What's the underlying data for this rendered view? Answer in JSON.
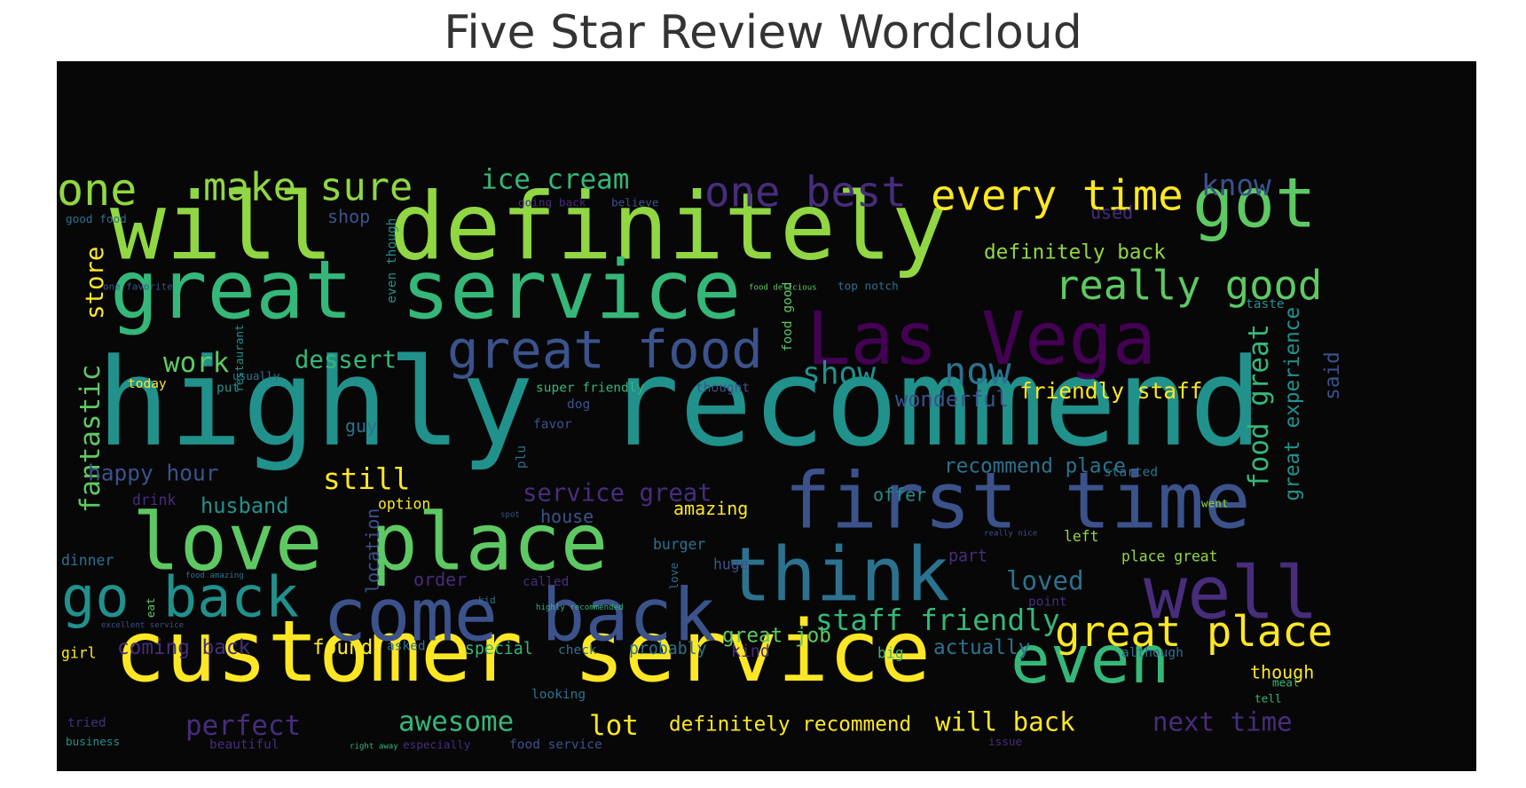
{
  "title": "Five Star Review Wordcloud",
  "colors": {
    "background": "#070708",
    "palette": [
      "#440154",
      "#3b528b",
      "#21918c",
      "#5ec962",
      "#fde725",
      "#2c728e",
      "#35b779",
      "#90d743",
      "#472d7b"
    ]
  },
  "words": [
    {
      "text": "highly recommend",
      "color": "#21918c"
    },
    {
      "text": "will definitely",
      "color": "#90d743"
    },
    {
      "text": "customer service",
      "color": "#fde725"
    },
    {
      "text": "great service",
      "color": "#35b779"
    },
    {
      "text": "first time",
      "color": "#3b528b"
    },
    {
      "text": "love place",
      "color": "#5ec962"
    },
    {
      "text": "Las Vega",
      "color": "#440154"
    },
    {
      "text": "come back",
      "color": "#3b528b"
    },
    {
      "text": "think",
      "color": "#2c728e"
    },
    {
      "text": "well",
      "color": "#472d7b"
    },
    {
      "text": "even",
      "color": "#35b779"
    },
    {
      "text": "go back",
      "color": "#21918c"
    },
    {
      "text": "got",
      "color": "#5ec962"
    },
    {
      "text": "great food",
      "color": "#3b528b"
    },
    {
      "text": "great place",
      "color": "#fde725"
    },
    {
      "text": "one best",
      "color": "#472d7b"
    },
    {
      "text": "every time",
      "color": "#fde725"
    },
    {
      "text": "one",
      "color": "#90d743"
    },
    {
      "text": "make sure",
      "color": "#90d743"
    },
    {
      "text": "really good",
      "color": "#5ec962"
    },
    {
      "text": "ice cream",
      "color": "#35b779"
    },
    {
      "text": "know",
      "color": "#3b528b"
    },
    {
      "text": "now",
      "color": "#2c728e"
    },
    {
      "text": "show",
      "color": "#21918c"
    },
    {
      "text": "work",
      "color": "#5ec962"
    },
    {
      "text": "dessert",
      "color": "#35b779"
    },
    {
      "text": "fantastic",
      "color": "#5ec962"
    },
    {
      "text": "store",
      "color": "#fde725"
    },
    {
      "text": "staff friendly",
      "color": "#35b779"
    },
    {
      "text": "service great",
      "color": "#472d7b"
    },
    {
      "text": "friendly staff",
      "color": "#fde725"
    },
    {
      "text": "definitely back",
      "color": "#90d743"
    },
    {
      "text": "still",
      "color": "#fde725"
    },
    {
      "text": "happy hour",
      "color": "#3b528b"
    },
    {
      "text": "husband",
      "color": "#21918c"
    },
    {
      "text": "perfect",
      "color": "#472d7b"
    },
    {
      "text": "awesome",
      "color": "#35b779"
    },
    {
      "text": "lot",
      "color": "#fde725"
    },
    {
      "text": "definitely recommend",
      "color": "#fde725"
    },
    {
      "text": "will back",
      "color": "#fde725"
    },
    {
      "text": "next time",
      "color": "#472d7b"
    },
    {
      "text": "loved",
      "color": "#2c728e"
    },
    {
      "text": "wonderful",
      "color": "#3b528b"
    },
    {
      "text": "recommend place",
      "color": "#2c728e"
    },
    {
      "text": "food great",
      "color": "#35b779"
    },
    {
      "text": "great experience",
      "color": "#21918c"
    },
    {
      "text": "said",
      "color": "#3b528b"
    },
    {
      "text": "great job",
      "color": "#5ec962"
    },
    {
      "text": "actually",
      "color": "#2c728e"
    },
    {
      "text": "found",
      "color": "#fde725"
    },
    {
      "text": "coming back",
      "color": "#472d7b"
    },
    {
      "text": "order",
      "color": "#472d7b"
    },
    {
      "text": "amazing",
      "color": "#fde725"
    },
    {
      "text": "offer",
      "color": "#21918c"
    },
    {
      "text": "house",
      "color": "#3b528b"
    },
    {
      "text": "though",
      "color": "#fde725"
    },
    {
      "text": "guy",
      "color": "#2c728e"
    },
    {
      "text": "shop",
      "color": "#3b528b"
    },
    {
      "text": "used",
      "color": "#472d7b"
    },
    {
      "text": "location",
      "color": "#3b528b"
    },
    {
      "text": "part",
      "color": "#472d7b"
    },
    {
      "text": "place great",
      "color": "#90d743"
    },
    {
      "text": "special",
      "color": "#35b779"
    },
    {
      "text": "probably",
      "color": "#2c728e"
    },
    {
      "text": "kind",
      "color": "#472d7b"
    },
    {
      "text": "big",
      "color": "#35b779"
    },
    {
      "text": "left",
      "color": "#90d743"
    },
    {
      "text": "huge",
      "color": "#3b528b"
    },
    {
      "text": "burger",
      "color": "#2c728e"
    },
    {
      "text": "drink",
      "color": "#472d7b"
    },
    {
      "text": "option",
      "color": "#fde725"
    },
    {
      "text": "girl",
      "color": "#fde725"
    },
    {
      "text": "dinner",
      "color": "#2c728e"
    },
    {
      "text": "today",
      "color": "#fde725"
    },
    {
      "text": "put",
      "color": "#21918c"
    },
    {
      "text": "usually",
      "color": "#2c728e"
    },
    {
      "text": "super friendly",
      "color": "#35b779"
    },
    {
      "text": "thought",
      "color": "#3b528b"
    },
    {
      "text": "good food",
      "color": "#2c728e"
    },
    {
      "text": "one favorite",
      "color": "#3b528b"
    },
    {
      "text": "going back",
      "color": "#472d7b"
    },
    {
      "text": "believe",
      "color": "#3b528b"
    },
    {
      "text": "top notch",
      "color": "#2c728e"
    },
    {
      "text": "food good",
      "color": "#5ec962"
    },
    {
      "text": "even though",
      "color": "#21918c"
    },
    {
      "text": "taste",
      "color": "#21918c"
    },
    {
      "text": "started",
      "color": "#2c728e"
    },
    {
      "text": "plu",
      "color": "#2c728e"
    },
    {
      "text": "restaurant",
      "color": "#21918c"
    },
    {
      "text": "called",
      "color": "#472d7b"
    },
    {
      "text": "check",
      "color": "#2c728e"
    },
    {
      "text": "asked",
      "color": "#2c728e"
    },
    {
      "text": "although",
      "color": "#2c728e"
    },
    {
      "text": "looking",
      "color": "#2c728e"
    },
    {
      "text": "beautiful",
      "color": "#472d7b"
    },
    {
      "text": "food service",
      "color": "#3b528b"
    },
    {
      "text": "tried",
      "color": "#472d7b"
    },
    {
      "text": "business",
      "color": "#21918c"
    },
    {
      "text": "especially",
      "color": "#472d7b"
    },
    {
      "text": "issue",
      "color": "#472d7b"
    },
    {
      "text": "favor",
      "color": "#3b528b"
    },
    {
      "text": "dog",
      "color": "#3b528b"
    },
    {
      "text": "kid",
      "color": "#2c728e"
    },
    {
      "text": "love",
      "color": "#2c728e"
    },
    {
      "text": "point",
      "color": "#472d7b"
    },
    {
      "text": "went",
      "color": "#90d743"
    },
    {
      "text": "tell",
      "color": "#35b779"
    },
    {
      "text": "meal",
      "color": "#35b779"
    },
    {
      "text": "food delicious",
      "color": "#5ec962"
    },
    {
      "text": "food amazing",
      "color": "#2c728e"
    },
    {
      "text": "highly recommended",
      "color": "#35b779"
    },
    {
      "text": "excellent service",
      "color": "#3b528b"
    },
    {
      "text": "really nice",
      "color": "#3b528b"
    },
    {
      "text": "right away",
      "color": "#35b779"
    },
    {
      "text": "eat",
      "color": "#5ec962"
    },
    {
      "text": "spot",
      "color": "#3b528b"
    }
  ]
}
